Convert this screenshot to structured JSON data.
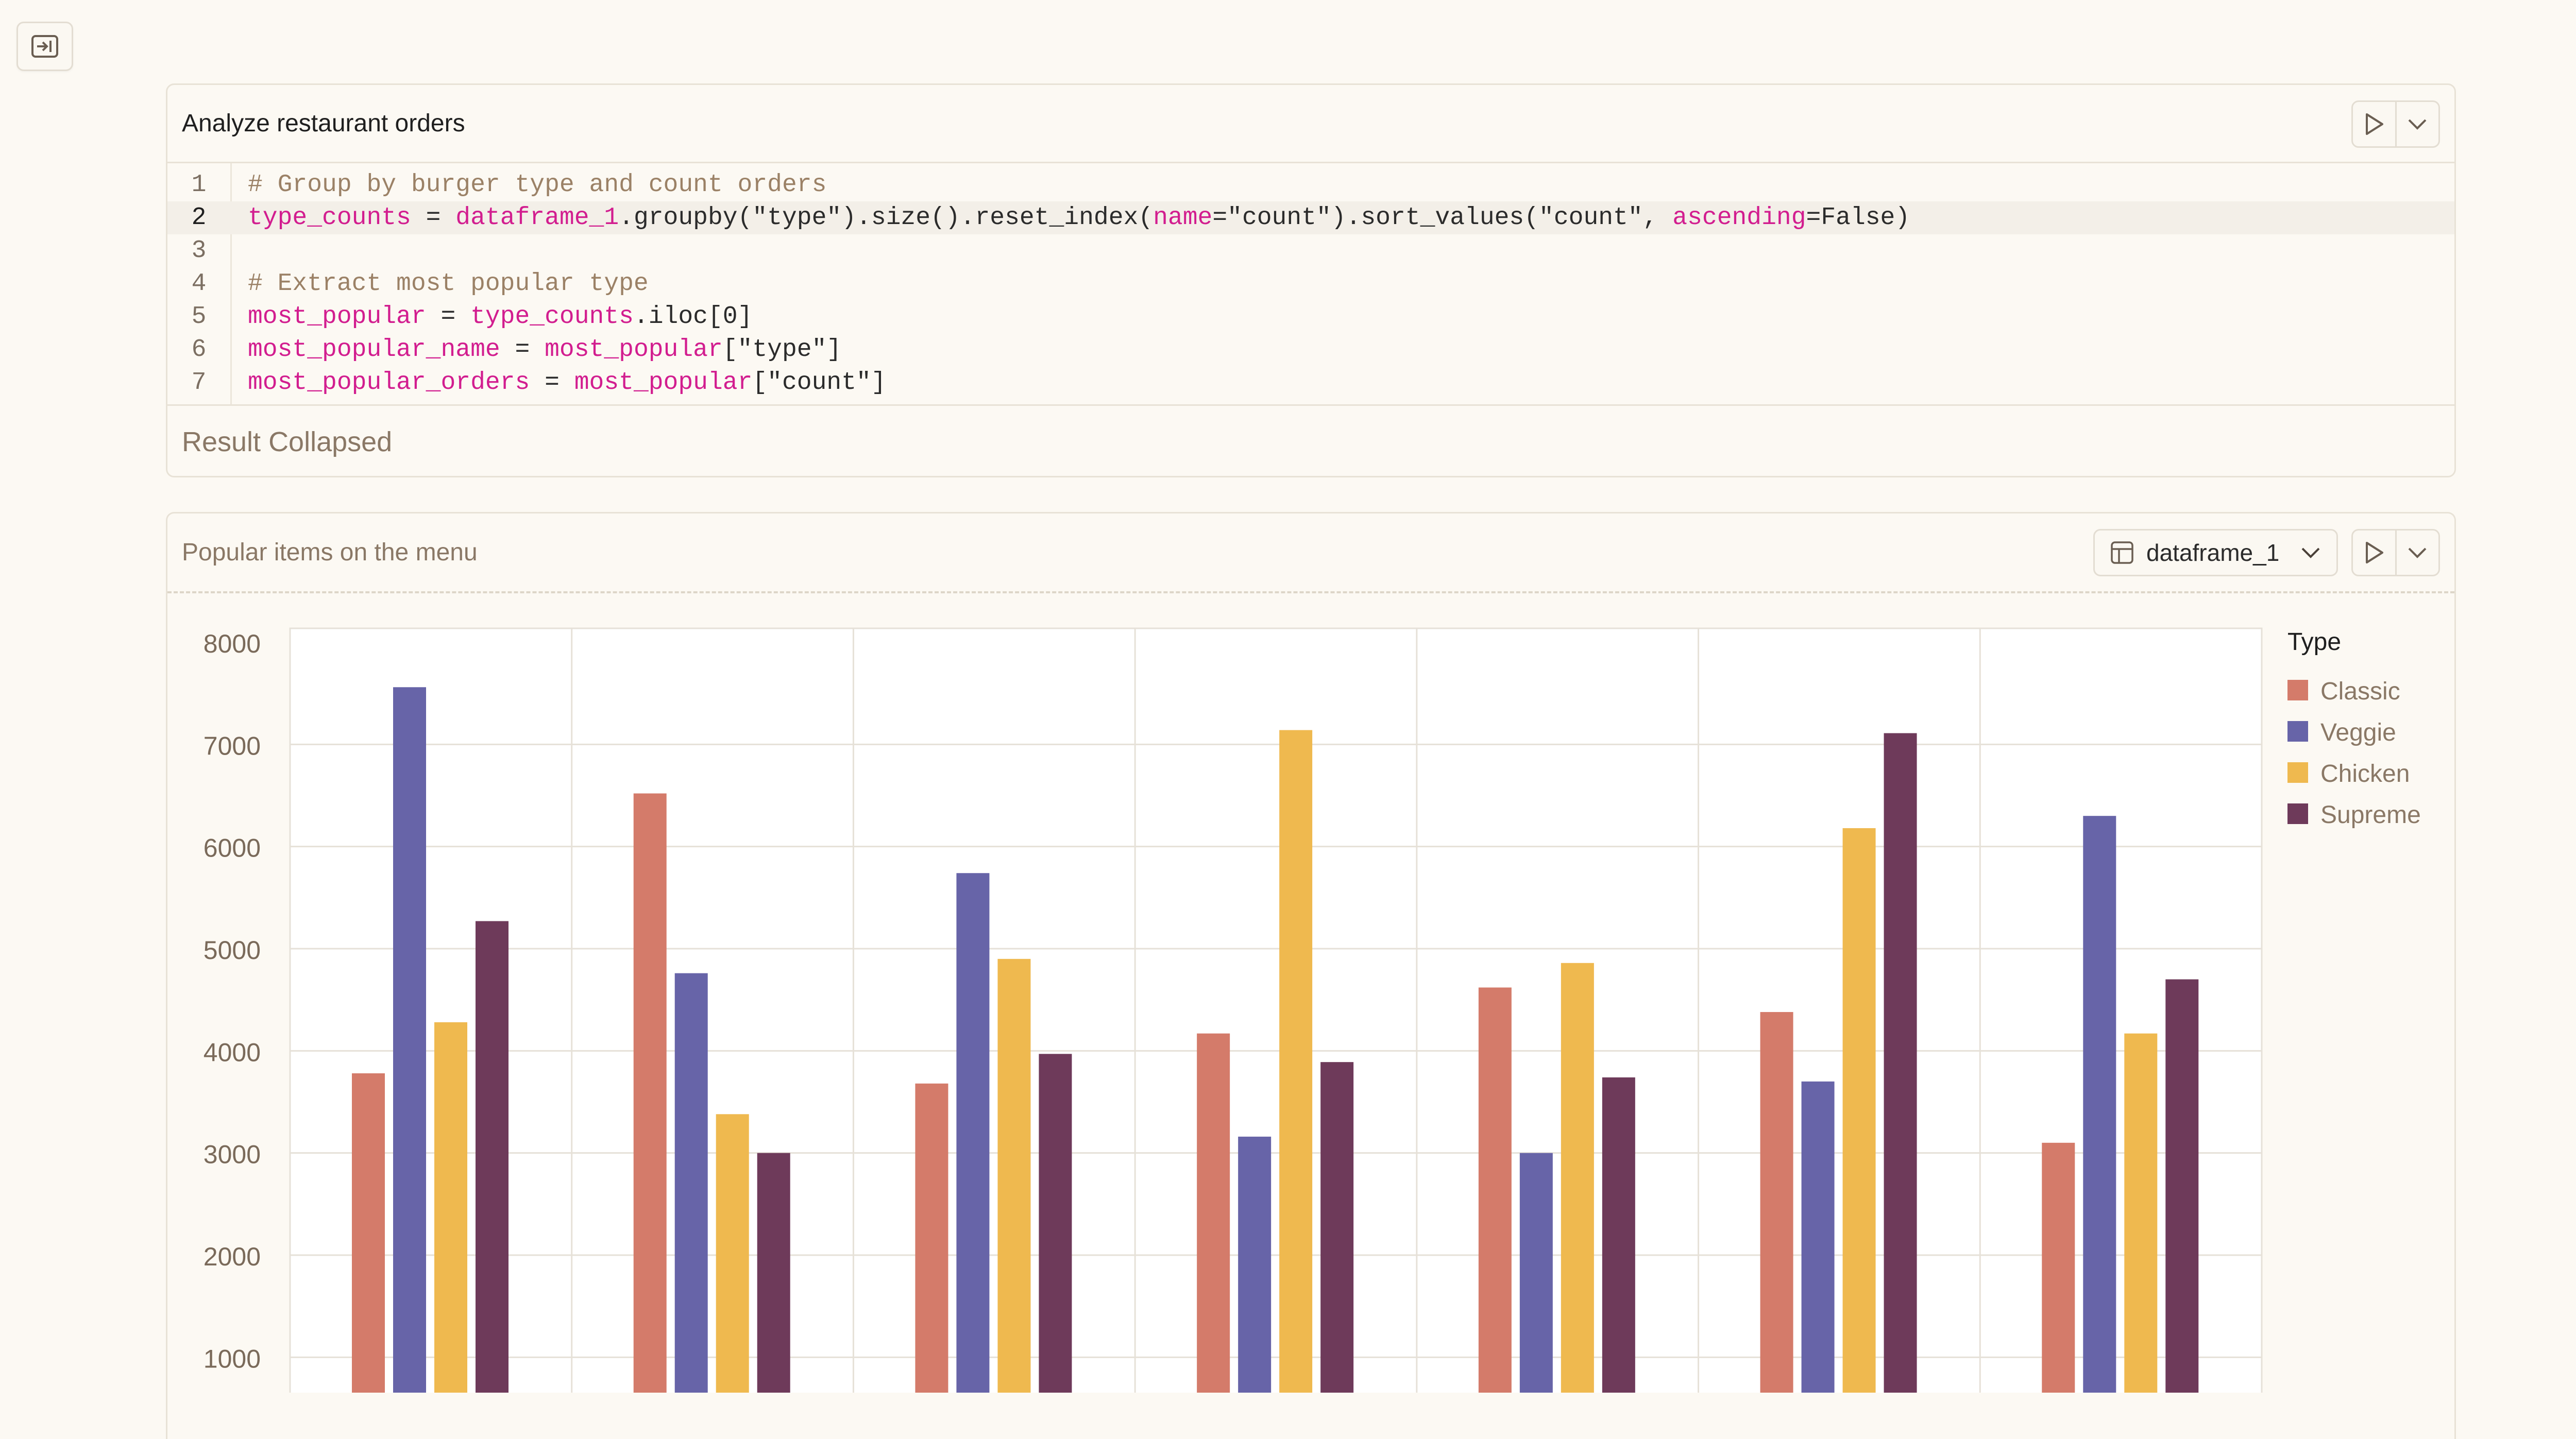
{
  "cell1": {
    "title": "Analyze  restaurant orders",
    "code_lines": [
      {
        "num": "1",
        "parts": [
          {
            "t": "# Group by burger type and count orders",
            "c": "cm"
          }
        ]
      },
      {
        "num": "2",
        "parts": [
          {
            "t": "type_counts",
            "c": "v"
          },
          {
            "t": " = ",
            "c": ""
          },
          {
            "t": "dataframe_1",
            "c": "v"
          },
          {
            "t": ".groupby(\"type\").size().reset_index(",
            "c": ""
          },
          {
            "t": "name",
            "c": "v"
          },
          {
            "t": "=\"count\").sort_values(\"count\", ",
            "c": ""
          },
          {
            "t": "ascending",
            "c": "v"
          },
          {
            "t": "=False)",
            "c": ""
          }
        ]
      },
      {
        "num": "3",
        "parts": []
      },
      {
        "num": "4",
        "parts": [
          {
            "t": "# Extract most popular type",
            "c": "cm"
          }
        ]
      },
      {
        "num": "5",
        "parts": [
          {
            "t": "most_popular",
            "c": "v"
          },
          {
            "t": " = ",
            "c": ""
          },
          {
            "t": "type_counts",
            "c": "v"
          },
          {
            "t": ".iloc[0]",
            "c": ""
          }
        ]
      },
      {
        "num": "6",
        "parts": [
          {
            "t": "most_popular_name",
            "c": "v"
          },
          {
            "t": " = ",
            "c": ""
          },
          {
            "t": "most_popular",
            "c": "v"
          },
          {
            "t": "[\"type\"]",
            "c": ""
          }
        ]
      },
      {
        "num": "7",
        "parts": [
          {
            "t": "most_popular_orders",
            "c": "v"
          },
          {
            "t": " = ",
            "c": ""
          },
          {
            "t": "most_popular",
            "c": "v"
          },
          {
            "t": "[\"count\"]",
            "c": ""
          }
        ]
      }
    ],
    "active_line": 2,
    "result_label": "Result Collapsed"
  },
  "cell2": {
    "title": "Popular items on the menu",
    "dataframe_label": "dataframe_1"
  },
  "icons": {
    "sidebar": "sidebar-expand-icon",
    "run": "play-icon",
    "menu": "chevron-down-icon",
    "table": "table-icon"
  },
  "chart_data": {
    "type": "bar",
    "categories": [
      "",
      "",
      "",
      "",
      "",
      "",
      ""
    ],
    "series": [
      {
        "name": "Classic",
        "color": "#d47b6a",
        "values": [
          3780,
          6520,
          3680,
          4170,
          4620,
          4380,
          3100
        ]
      },
      {
        "name": "Veggie",
        "color": "#6764a8",
        "values": [
          7560,
          4760,
          5740,
          3160,
          3000,
          3700,
          6300
        ]
      },
      {
        "name": "Chicken",
        "color": "#efb94f",
        "values": [
          4280,
          3380,
          4900,
          7140,
          4860,
          6180,
          4170
        ]
      },
      {
        "name": "Supreme",
        "color": "#6e3a5a",
        "values": [
          5270,
          3000,
          3970,
          3890,
          3740,
          7110,
          4700
        ]
      }
    ],
    "yticks": [
      "1000",
      "2000",
      "3000",
      "4000",
      "5000",
      "6000",
      "7000",
      "8000"
    ],
    "ylim": [
      0,
      8000
    ],
    "legend_title": "Type",
    "legend_position": "right",
    "grid": true
  }
}
